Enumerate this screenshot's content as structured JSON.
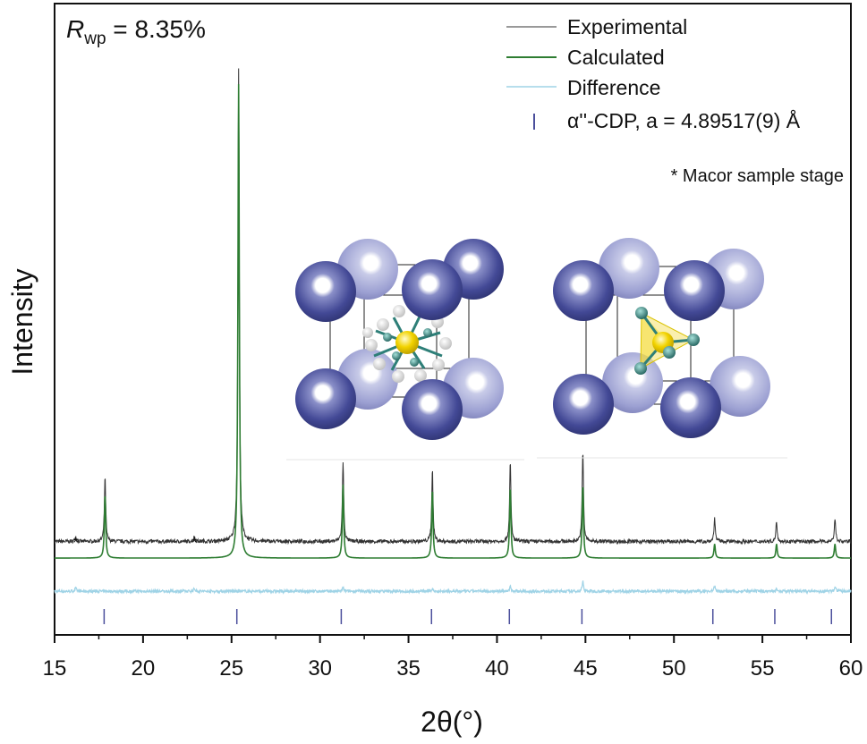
{
  "chart_data": {
    "type": "line",
    "title": "",
    "xlabel": "2θ(°)",
    "ylabel": "Intensity",
    "xlim": [
      15,
      60
    ],
    "xticks": [
      15,
      20,
      25,
      30,
      35,
      40,
      45,
      50,
      55,
      60
    ],
    "y_tick_labels_shown": false,
    "annotation": {
      "r_label": "R",
      "r_subscript": "wp",
      "r_value": " = 8.35%"
    },
    "legend_position": "top-right",
    "legend": [
      {
        "key": "exp",
        "label": "Experimental",
        "color": "#333333"
      },
      {
        "key": "calc",
        "label": "Calculated",
        "color": "#2e7d32"
      },
      {
        "key": "diff",
        "label": "Difference",
        "color": "#9fd3e6"
      },
      {
        "key": "tick",
        "label": "α''-CDP, a = 4.89517(9) Å",
        "color": "#4b4f9c"
      }
    ],
    "note": "* Macor sample stage",
    "impurity_marker": "*",
    "impurity_peaks": [
      16.2,
      22.9
    ],
    "calculated_baseline": 0.03,
    "experimental_offset": 0.065,
    "difference_level": -0.04,
    "peaks": [
      {
        "x": 17.85,
        "height": 0.135,
        "exp_extra": 0.0
      },
      {
        "x": 25.4,
        "height": 1.0,
        "exp_extra": 0.0
      },
      {
        "x": 31.3,
        "height": 0.155,
        "exp_extra": 0.012
      },
      {
        "x": 36.35,
        "height": 0.145,
        "exp_extra": 0.01
      },
      {
        "x": 40.75,
        "height": 0.15,
        "exp_extra": 0.018
      },
      {
        "x": 44.85,
        "height": 0.155,
        "exp_extra": 0.035
      },
      {
        "x": 52.3,
        "height": 0.03,
        "exp_extra": 0.018
      },
      {
        "x": 55.8,
        "height": 0.03,
        "exp_extra": 0.012
      },
      {
        "x": 59.1,
        "height": 0.03,
        "exp_extra": 0.018
      }
    ],
    "reflection_ticks": [
      17.8,
      25.3,
      31.2,
      36.3,
      40.7,
      44.8,
      52.2,
      55.7,
      58.9
    ]
  },
  "colors": {
    "frame": "#111111",
    "atom_dark": "#3f4593",
    "atom_light": "#9a9fd0",
    "core_yellow": "#f2d300",
    "ligand_teal": "#2e7f78",
    "hydrogen": "#f3f3f3",
    "tick_blue": "#4b4f9c"
  }
}
